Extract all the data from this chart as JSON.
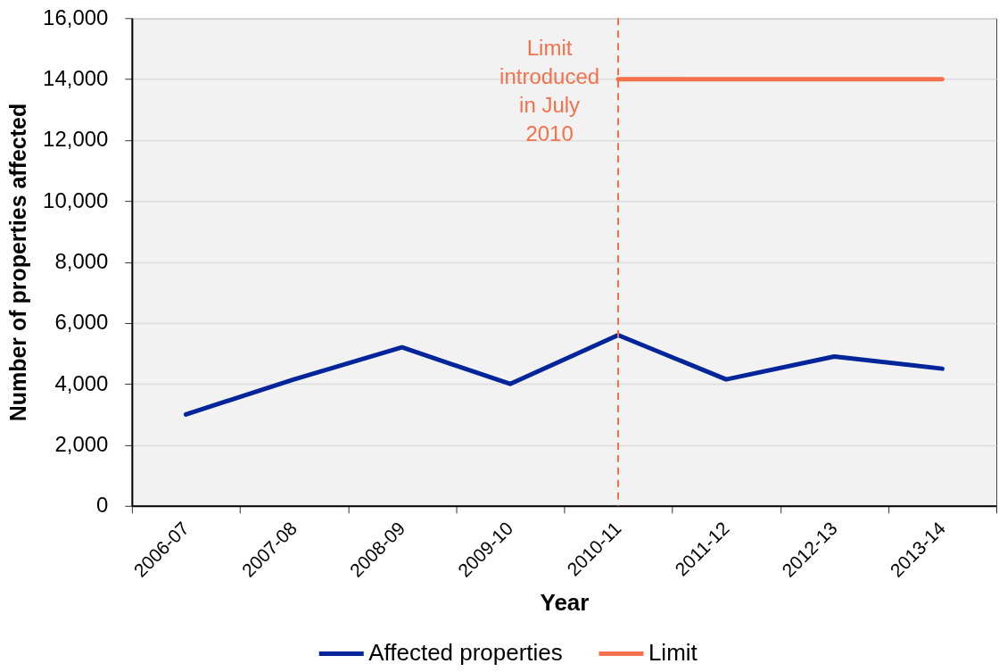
{
  "chart_data": {
    "type": "line",
    "xlabel": "Year",
    "ylabel": "Number of properties affected",
    "categories": [
      "2006-07",
      "2007-08",
      "2008-09",
      "2009-10",
      "2010-11",
      "2011-12",
      "2012-13",
      "2013-14"
    ],
    "series": [
      {
        "name": "Affected properties",
        "color": "#00259a",
        "values": [
          3000,
          4150,
          5200,
          4000,
          5600,
          4150,
          4900,
          4500
        ]
      },
      {
        "name": "Limit",
        "color": "#f4704a",
        "values": [
          null,
          null,
          null,
          null,
          14000,
          14000,
          14000,
          14000
        ]
      }
    ],
    "ylim": [
      0,
      16000
    ],
    "yticks": [
      0,
      {
        "value": 2000,
        "label": "2,000"
      },
      {
        "value": 4000,
        "label": "4,000"
      },
      {
        "value": 6000,
        "label": "6,000"
      },
      {
        "value": 8000,
        "label": "8,000"
      },
      {
        "value": 10000,
        "label": "10,000"
      },
      {
        "value": 12000,
        "label": "12,000"
      },
      {
        "value": 14000,
        "label": "14,000"
      },
      {
        "value": 16000,
        "label": "16,000"
      }
    ],
    "ref_lines": [
      {
        "axis": "x",
        "value": "2010-11",
        "label": "Limit introduced in July 2010",
        "color": "#f4704a",
        "line_style": "dashed"
      }
    ],
    "grid": "y",
    "legend": "bottom",
    "marker": "none",
    "line_style": "solid"
  }
}
